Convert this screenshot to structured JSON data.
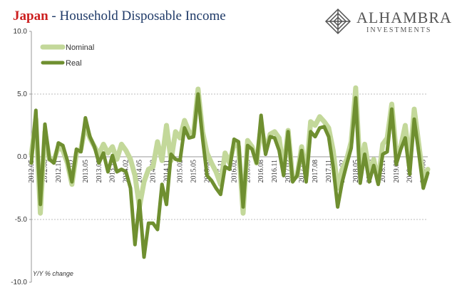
{
  "header": {
    "title_accent": "Japan",
    "title_rest": " - Household Disposable Income"
  },
  "logo": {
    "brand": "ALHAMBRA",
    "sub": "INVESTMENTS",
    "icon": "alhambra-lattice-logo"
  },
  "colors": {
    "nominal": "#c3d89a",
    "real": "#6f8f30",
    "text": "#333333",
    "grid": "#bbbbbb",
    "title_accent": "#cc1f1f",
    "title": "#1f3a68"
  },
  "chart_data": {
    "type": "line",
    "title": "Japan - Household Disposable Income",
    "ylabel_note": "Y/Y % change",
    "ylim": [
      -10,
      10
    ],
    "yticks": [
      "10.0",
      "5.0",
      "0.0",
      "-5.0",
      "-10.0"
    ],
    "ytick_values": [
      10,
      5,
      0,
      -5,
      -10
    ],
    "grid": "horizontal dotted at 5.0 and -5.0; solid zero line",
    "legend": {
      "placement": "top-left",
      "entries": [
        "Nominal",
        "Real"
      ]
    },
    "x": [
      "2012.05",
      "2012.06",
      "2012.07",
      "2012.08",
      "2012.09",
      "2012.10",
      "2012.11",
      "2012.12",
      "2013.01",
      "2013.02",
      "2013.03",
      "2013.04",
      "2013.05",
      "2013.06",
      "2013.07",
      "2013.08",
      "2013.09",
      "2013.10",
      "2013.11",
      "2013.12",
      "2014.01",
      "2014.02",
      "2014.03",
      "2014.04",
      "2014.05",
      "2014.06",
      "2014.07",
      "2014.08",
      "2014.09",
      "2014.10",
      "2014.11",
      "2014.12",
      "2015.01",
      "2015.02",
      "2015.03",
      "2015.04",
      "2015.05",
      "2015.06",
      "2015.07",
      "2015.08",
      "2015.09",
      "2015.10",
      "2015.11",
      "2015.12",
      "2016.01",
      "2016.02",
      "2016.03",
      "2016.04",
      "2016.05",
      "2016.06",
      "2016.07",
      "2016.08",
      "2016.09",
      "2016.10",
      "2016.11",
      "2016.12",
      "2017.01",
      "2017.02",
      "2017.03",
      "2017.04",
      "2017.05",
      "2017.06",
      "2017.07",
      "2017.08",
      "2017.09",
      "2017.10",
      "2017.11",
      "2017.12",
      "2018.01",
      "2018.02",
      "2018.03",
      "2018.04",
      "2018.05",
      "2018.06",
      "2018.07",
      "2018.08",
      "2018.09",
      "2018.10",
      "2018.11",
      "2018.12",
      "2019.01",
      "2019.02",
      "2019.03",
      "2019.04",
      "2019.05",
      "2019.06",
      "2019.07",
      "2019.08",
      "2019.09"
    ],
    "xtick_labels": [
      "2012.05",
      "2012.08",
      "2012.11",
      "2013.02",
      "2013.05",
      "2013.08",
      "2013.11",
      "2014.02",
      "2014.05",
      "2014.08",
      "2014.11",
      "2015.02",
      "2015.05",
      "2015.08",
      "2015.11",
      "2016.02",
      "2016.05",
      "2016.08",
      "2016.11",
      "2017.02",
      "2017.05",
      "2017.08",
      "2017.11",
      "2018.02",
      "2018.05",
      "2018.08",
      "2018.11",
      "2019.02",
      "2019.05",
      "2019.08"
    ],
    "series": [
      {
        "name": "Nominal",
        "values": [
          0.2,
          3.0,
          -4.5,
          2.0,
          -0.2,
          -0.3,
          0.8,
          0.5,
          -0.5,
          -2.2,
          0.3,
          0.6,
          2.5,
          1.5,
          0.8,
          0.2,
          1.0,
          0.3,
          0.8,
          -0.2,
          1.0,
          0.5,
          -0.2,
          -1.5,
          -4.0,
          -2.0,
          -1.0,
          -0.8,
          1.2,
          -0.3,
          2.5,
          -0.3,
          2.0,
          1.5,
          2.9,
          2.0,
          1.8,
          5.4,
          2.0,
          0.3,
          -0.5,
          -1.2,
          -2.2,
          0.3,
          -0.5,
          1.0,
          0.8,
          -4.5,
          1.3,
          0.8,
          -0.5,
          2.5,
          0.5,
          1.8,
          2.0,
          1.5,
          -1.0,
          2.1,
          -1.8,
          -1.5,
          0.8,
          -1.5,
          2.8,
          2.5,
          3.2,
          2.8,
          2.3,
          0.5,
          -2.5,
          -1.0,
          -0.2,
          1.2,
          5.5,
          -1.2,
          1.0,
          -1.2,
          -0.2,
          -2.0,
          1.0,
          1.5,
          4.2,
          0.3,
          0.8,
          2.5,
          -0.5,
          3.8,
          1.0,
          -1.8,
          -1.0
        ]
      },
      {
        "name": "Real",
        "values": [
          -0.5,
          3.7,
          -3.8,
          2.6,
          -0.2,
          -0.5,
          1.1,
          0.9,
          -0.3,
          -2.0,
          0.6,
          0.4,
          3.1,
          1.6,
          0.8,
          -0.5,
          0.3,
          -1.2,
          0.1,
          -1.2,
          -1.0,
          -1.2,
          -2.5,
          -7.0,
          -3.5,
          -8.0,
          -5.3,
          -5.3,
          -5.8,
          -2.2,
          -3.8,
          0.2,
          -0.2,
          -0.3,
          2.3,
          1.5,
          1.6,
          5.0,
          1.5,
          -1.5,
          -1.9,
          -2.5,
          -3.0,
          -0.8,
          -1.0,
          1.4,
          1.2,
          -4.0,
          0.9,
          0.6,
          -0.5,
          3.3,
          0.2,
          1.6,
          1.5,
          0.5,
          -1.5,
          2.0,
          -2.0,
          -1.5,
          0.5,
          -2.0,
          2.0,
          1.6,
          2.3,
          2.4,
          1.6,
          -0.8,
          -4.0,
          -2.0,
          -0.6,
          0.7,
          4.7,
          -2.1,
          0.2,
          -2.0,
          -0.7,
          -2.2,
          0.2,
          0.4,
          3.8,
          -0.6,
          0.6,
          1.5,
          -1.4,
          3.0,
          0.3,
          -2.5,
          -1.3
        ]
      }
    ]
  }
}
